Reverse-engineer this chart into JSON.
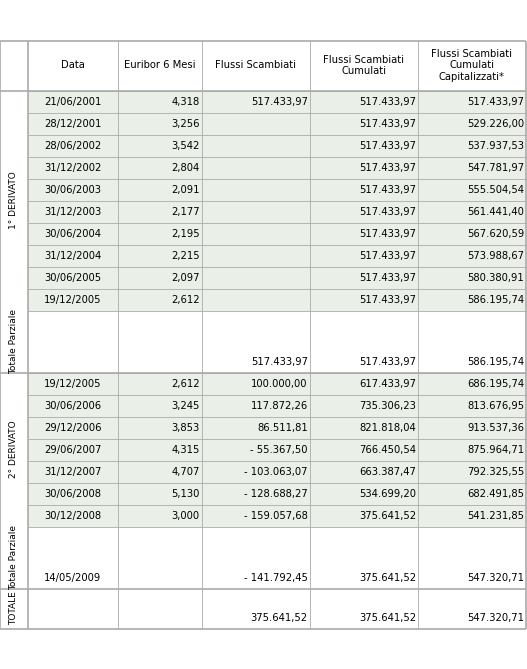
{
  "headers": [
    "Data",
    "Euribor 6 Mesi",
    "Flussi Scambiati",
    "Flussi Scambiati\nCumulati",
    "Flussi Scambiati\nCumulati\nCapitalizzati*"
  ],
  "section1_label": "1° DERIVATO",
  "section1_rows": [
    [
      "21/06/2001",
      "4,318",
      "517.433,97",
      "517.433,97",
      "517.433,97"
    ],
    [
      "28/12/2001",
      "3,256",
      "",
      "517.433,97",
      "529.226,00"
    ],
    [
      "28/06/2002",
      "3,542",
      "",
      "517.433,97",
      "537.937,53"
    ],
    [
      "31/12/2002",
      "2,804",
      "",
      "517.433,97",
      "547.781,97"
    ],
    [
      "30/06/2003",
      "2,091",
      "",
      "517.433,97",
      "555.504,54"
    ],
    [
      "31/12/2003",
      "2,177",
      "",
      "517.433,97",
      "561.441,40"
    ],
    [
      "30/06/2004",
      "2,195",
      "",
      "517.433,97",
      "567.620,59"
    ],
    [
      "31/12/2004",
      "2,215",
      "",
      "517.433,97",
      "573.988,67"
    ],
    [
      "30/06/2005",
      "2,097",
      "",
      "517.433,97",
      "580.380,91"
    ],
    [
      "19/12/2005",
      "2,612",
      "",
      "517.433,97",
      "586.195,74"
    ]
  ],
  "totale_parziale1_label": "Totale Parziale",
  "totale_parziale1_row": [
    "",
    "",
    "517.433,97",
    "517.433,97",
    "586.195,74"
  ],
  "section2_label": "2° DERIVATO",
  "section2_rows": [
    [
      "19/12/2005",
      "2,612",
      "100.000,00",
      "617.433,97",
      "686.195,74"
    ],
    [
      "30/06/2006",
      "3,245",
      "117.872,26",
      "735.306,23",
      "813.676,95"
    ],
    [
      "29/12/2006",
      "3,853",
      "86.511,81",
      "821.818,04",
      "913.537,36"
    ],
    [
      "29/06/2007",
      "4,315",
      "- 55.367,50",
      "766.450,54",
      "875.964,71"
    ],
    [
      "31/12/2007",
      "4,707",
      "- 103.063,07",
      "663.387,47",
      "792.325,55"
    ],
    [
      "30/06/2008",
      "5,130",
      "- 128.688,27",
      "534.699,20",
      "682.491,85"
    ],
    [
      "30/12/2008",
      "3,000",
      "- 159.057,68",
      "375.641,52",
      "541.231,85"
    ]
  ],
  "totale_parziale2_label": "Totale Parziale",
  "totale_parziale2_row": [
    "",
    "",
    "",
    "",
    ""
  ],
  "extra_row": [
    "14/05/2009",
    "",
    "- 141.792,45",
    "375.641,52",
    "547.320,71"
  ],
  "totale_label": "TOTALE",
  "totale_row": [
    "",
    "",
    "375.641,52",
    "375.641,52",
    "547.320,71"
  ],
  "bg_section": "#eaf0e8",
  "bg_white": "#ffffff",
  "line_color": "#aaaaaa",
  "text_color": "#000000",
  "header_fontsize": 7.2,
  "cell_fontsize": 7.2,
  "label_fontsize": 6.5
}
